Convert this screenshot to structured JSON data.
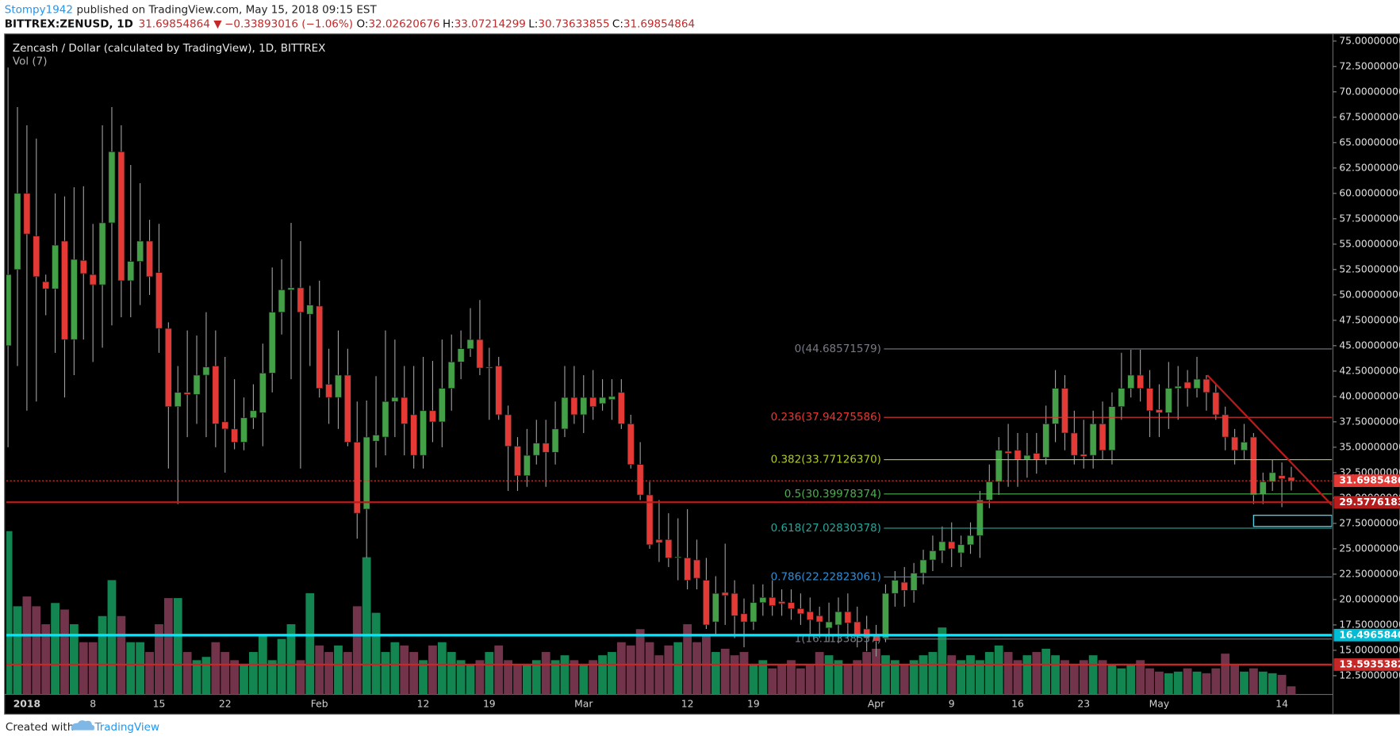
{
  "header": {
    "author": "Stompy1942",
    "published": "published on TradingView.com, May 15, 2018 09:15 EST",
    "symbol": "BITTREX:ZENUSD, 1D",
    "last": "31.69854864",
    "arrow": "▼",
    "change": "−0.33893016 (−1.06%)",
    "ohlc": [
      {
        "key": "O:",
        "value": "32.02620676"
      },
      {
        "key": "H:",
        "value": "33.07214299"
      },
      {
        "key": "L:",
        "value": "30.73633855"
      },
      {
        "key": "C:",
        "value": "31.69854864"
      }
    ]
  },
  "footer": {
    "created": "Created with",
    "brand": "TradingView"
  },
  "chart_data": {
    "type": "candlestick",
    "title": "Zencash / Dollar (calculated by TradingView), 1D, BITTREX",
    "volume_label": "Vol (7)",
    "up_color": "#43a047",
    "down_color": "#e53935",
    "wick_color": "#9e9e9e",
    "volume_up_color": "#15935a",
    "volume_down_color": "#7d3a52",
    "categories": [
      null,
      null,
      "2018",
      null,
      null,
      null,
      null,
      null,
      null,
      "8",
      null,
      null,
      null,
      null,
      null,
      null,
      "15",
      null,
      null,
      null,
      null,
      null,
      null,
      "22",
      null,
      null,
      null,
      null,
      null,
      null,
      null,
      null,
      null,
      "Feb",
      null,
      null,
      null,
      null,
      null,
      null,
      null,
      null,
      null,
      null,
      "12",
      null,
      null,
      null,
      null,
      null,
      null,
      "19",
      null,
      null,
      null,
      null,
      null,
      null,
      null,
      null,
      null,
      "Mar",
      null,
      null,
      null,
      null,
      null,
      null,
      null,
      null,
      null,
      null,
      "12",
      null,
      null,
      null,
      null,
      null,
      null,
      "19",
      null,
      null,
      null,
      null,
      null,
      null,
      null,
      null,
      null,
      null,
      null,
      null,
      "Apr",
      null,
      null,
      null,
      null,
      null,
      null,
      null,
      "9",
      null,
      null,
      null,
      null,
      null,
      null,
      "16",
      null,
      null,
      null,
      null,
      null,
      null,
      "23",
      null,
      null,
      null,
      null,
      null,
      null,
      null,
      "May",
      null,
      null,
      null,
      null,
      null,
      null,
      null,
      null,
      null,
      null,
      null,
      null,
      "14",
      null
    ],
    "open": [
      45,
      52.5,
      60,
      55.8,
      51.3,
      50.6,
      55.3,
      45.6,
      53.4,
      52,
      51,
      57.1,
      64.1,
      51.4,
      53.3,
      55.3,
      52.2,
      46.7,
      39,
      40.4,
      40.2,
      42.1,
      43,
      37.5,
      36.8,
      35.5,
      37.9,
      38.4,
      42.3,
      48.3,
      50.5,
      50.7,
      48.1,
      48.9,
      41.2,
      39.9,
      42.1,
      35.5,
      28.9,
      35.6,
      36,
      39.5,
      39.9,
      38.2,
      34.2,
      38.6,
      37.5,
      40.8,
      43.4,
      44.7,
      45.6,
      42.8,
      43,
      38.2,
      35.1,
      32.2,
      34.2,
      35.4,
      34.5,
      36.8,
      39.9,
      38.2,
      39.9,
      39.3,
      39.7,
      40.4,
      37.3,
      33.3,
      30.3,
      25.9,
      25.9,
      24.1,
      24.1,
      23.9,
      21.9,
      17.8,
      20.7,
      20.6,
      18.6,
      17.8,
      19.7,
      20.2,
      19.8,
      19.7,
      19.1,
      18.8,
      18.4,
      17.2,
      17.5,
      18.8,
      17.8,
      17.1,
      16.5,
      16.2,
      20.6,
      21.7,
      20.9,
      22.6,
      23.9,
      24.8,
      25.7,
      24.6,
      25.4,
      26.3,
      29.8,
      31.6,
      34.6,
      34.7,
      33.8,
      34.4,
      34,
      37.3,
      40.8,
      36.4,
      34.3,
      34.2,
      37.3,
      34.7,
      39,
      40.8,
      42.1,
      40.8,
      38.7,
      38.4,
      40.8,
      41.4,
      40.8,
      41.7,
      40.4,
      38.2,
      36,
      34.7,
      36,
      30.4,
      31.6,
      32.2,
      32.03
    ],
    "high": [
      72.4,
      68.5,
      66.7,
      65.4,
      52,
      60,
      59.7,
      60.6,
      60.7,
      57,
      66.7,
      68.5,
      66.7,
      62.8,
      61,
      57.4,
      57,
      47.3,
      43,
      46.5,
      46,
      48.3,
      46.5,
      43.9,
      41.7,
      39.9,
      41.2,
      45.2,
      52.7,
      53.5,
      57.1,
      55.3,
      50.9,
      51.4,
      44.7,
      46.5,
      44.7,
      39.5,
      39.6,
      42,
      46.5,
      45.6,
      43,
      43,
      43.9,
      43.5,
      45.6,
      46.1,
      46.5,
      48.7,
      49.5,
      44.8,
      43.9,
      39.1,
      36,
      36.8,
      37.7,
      37.7,
      39.5,
      43,
      43,
      42.1,
      42.6,
      41.7,
      41.7,
      41.7,
      38.2,
      35.5,
      31.6,
      29.8,
      28.5,
      28,
      28.9,
      25.9,
      24.1,
      22.3,
      25.5,
      21.9,
      20.1,
      21.5,
      21.5,
      21.9,
      21,
      21,
      20.6,
      20.2,
      19.3,
      19.7,
      20.2,
      20.6,
      19.3,
      18.4,
      17.5,
      21.5,
      22.8,
      23.2,
      23.6,
      24.9,
      26.3,
      27.2,
      27.6,
      26.3,
      27.6,
      30.7,
      33.3,
      36,
      37.3,
      36.4,
      36.4,
      36.4,
      39.1,
      42.6,
      42.1,
      38.6,
      37.7,
      38.6,
      39.5,
      40.4,
      44.3,
      44.6,
      44.6,
      42.6,
      41.2,
      43.4,
      43,
      42.6,
      43.9,
      42.1,
      41.2,
      39,
      36.8,
      37.3,
      36.4,
      32.5,
      33.8,
      33.5,
      33.07
    ],
    "low": [
      35,
      43,
      38.6,
      39.5,
      48,
      44.3,
      39.9,
      42.1,
      45.6,
      43.4,
      44.8,
      47,
      47.8,
      47.8,
      49,
      50,
      44.3,
      32.9,
      29.4,
      36,
      37.3,
      36,
      35,
      32.5,
      34.8,
      34.7,
      36.8,
      35.1,
      40.4,
      46.1,
      41.7,
      32.9,
      43,
      39.9,
      37.3,
      36.8,
      35.1,
      26,
      24.1,
      33,
      34.2,
      36,
      34.2,
      32.9,
      32.9,
      35.5,
      35,
      38.6,
      41.7,
      43.9,
      42.1,
      37.7,
      37.7,
      30.7,
      30.7,
      31.1,
      33.3,
      31.1,
      33.3,
      36,
      37.3,
      36.4,
      37.7,
      38.6,
      37.7,
      36.8,
      32.9,
      29.8,
      25,
      23.7,
      23.2,
      21.9,
      21,
      21,
      17.1,
      16.6,
      17.5,
      16.2,
      15.3,
      17,
      18.4,
      18.4,
      18.4,
      18,
      17.5,
      16.6,
      16.2,
      15.8,
      15.7,
      16.2,
      15.3,
      14.9,
      14.4,
      15.8,
      19.3,
      19.3,
      19.7,
      21.5,
      22.8,
      23.6,
      23.2,
      23.2,
      24.5,
      24.1,
      29,
      30.3,
      31.1,
      31.1,
      32,
      32.4,
      33.3,
      35.5,
      34.7,
      33.3,
      32.9,
      32.9,
      33.8,
      33.3,
      37.7,
      39.9,
      39.5,
      36,
      36,
      36.8,
      37.7,
      39,
      39.9,
      38.6,
      37.7,
      34.7,
      33.3,
      33.8,
      29.4,
      29.4,
      30.7,
      29.1,
      30.74
    ],
    "close": [
      52,
      60,
      56,
      51.8,
      50.6,
      54.9,
      45.6,
      53.5,
      52.1,
      51,
      57.1,
      64.1,
      51.4,
      53.3,
      55.3,
      51.8,
      46.7,
      39,
      40.4,
      40.2,
      42.1,
      42.9,
      37.3,
      36.8,
      35.5,
      37.9,
      38.6,
      42.3,
      48.3,
      50.5,
      50.7,
      48.3,
      49,
      40.8,
      39.9,
      42.1,
      35.5,
      28.5,
      36,
      36.2,
      39.5,
      39.9,
      37.3,
      34.2,
      38.6,
      37.5,
      40.8,
      43.4,
      44.7,
      45.6,
      42.8,
      42.9,
      38.2,
      35.1,
      32.2,
      34.2,
      35.4,
      34.5,
      36.8,
      39.9,
      38.2,
      39.9,
      39,
      39.9,
      40,
      37.3,
      33.3,
      30.3,
      25.4,
      25.6,
      24.1,
      24.2,
      21.9,
      22.1,
      17.5,
      20.6,
      20.4,
      18.4,
      17.8,
      19.7,
      20.2,
      19.4,
      19.6,
      19.1,
      18.6,
      18,
      17.8,
      17.8,
      18.8,
      17.7,
      16.6,
      16.2,
      15.9,
      20.6,
      21.9,
      20.9,
      22.6,
      23.9,
      24.8,
      25.7,
      25,
      25.4,
      26.3,
      29.8,
      31.6,
      34.7,
      34.4,
      33.8,
      34.2,
      33.8,
      37.3,
      40.8,
      36.4,
      34.2,
      34.1,
      37.3,
      34.7,
      39,
      40.8,
      42.1,
      40.8,
      38.6,
      38.4,
      40.8,
      41,
      40.8,
      41.7,
      40.4,
      38.2,
      36,
      34.7,
      35.5,
      30.3,
      31.6,
      32.5,
      31.9,
      31.7
    ],
    "volume": [
      100,
      54,
      60,
      54,
      43,
      56,
      52,
      43,
      32,
      32,
      48,
      70,
      48,
      32,
      32,
      26,
      43,
      59,
      59,
      26,
      21,
      23,
      32,
      26,
      21,
      18,
      26,
      37,
      21,
      34,
      43,
      21,
      62,
      30,
      26,
      30,
      26,
      54,
      84,
      50,
      26,
      32,
      30,
      26,
      21,
      30,
      32,
      26,
      21,
      18,
      21,
      26,
      30,
      21,
      18,
      18,
      21,
      26,
      21,
      24,
      21,
      18,
      21,
      24,
      26,
      32,
      30,
      40,
      32,
      24,
      30,
      32,
      43,
      32,
      37,
      26,
      28,
      24,
      26,
      18,
      21,
      16,
      18,
      21,
      16,
      18,
      26,
      24,
      21,
      18,
      21,
      26,
      28,
      24,
      21,
      18,
      21,
      24,
      26,
      41,
      24,
      21,
      24,
      21,
      26,
      30,
      26,
      21,
      24,
      26,
      28,
      24,
      21,
      18,
      21,
      24,
      21,
      18,
      16,
      18,
      21,
      16,
      14,
      13,
      14,
      16,
      14,
      13,
      16,
      25,
      18,
      14,
      16,
      14,
      13,
      12,
      5
    ],
    "ylim": [
      10.65,
      75.53
    ],
    "yticks": [
      {
        "value": 12.5,
        "label": "12.500000000"
      },
      {
        "value": 15,
        "label": "15.000000000"
      },
      {
        "value": 17.5,
        "label": "17.500000000"
      },
      {
        "value": 20,
        "label": "20.000000000"
      },
      {
        "value": 22.5,
        "label": "22.500000000"
      },
      {
        "value": 25,
        "label": "25.000000000"
      },
      {
        "value": 27.5,
        "label": "27.500000000"
      },
      {
        "value": 30,
        "label": "30.000000000"
      },
      {
        "value": 32.5,
        "label": "32.500000000"
      },
      {
        "value": 35,
        "label": "35.000000000"
      },
      {
        "value": 37.5,
        "label": "37.500000000"
      },
      {
        "value": 40,
        "label": "40.000000000"
      },
      {
        "value": 42.5,
        "label": "42.500000000"
      },
      {
        "value": 45,
        "label": "45.000000000"
      },
      {
        "value": 47.5,
        "label": "47.500000000"
      },
      {
        "value": 50,
        "label": "50.000000000"
      },
      {
        "value": 52.5,
        "label": "52.500000000"
      },
      {
        "value": 55,
        "label": "55.000000000"
      },
      {
        "value": 57.5,
        "label": "57.500000000"
      },
      {
        "value": 60,
        "label": "60.000000000"
      },
      {
        "value": 62.5,
        "label": "62.500000000"
      },
      {
        "value": 65,
        "label": "65.000000000"
      },
      {
        "value": 67.5,
        "label": "67.500000000"
      },
      {
        "value": 70,
        "label": "70.000000000"
      },
      {
        "value": 72.5,
        "label": "72.500000000"
      },
      {
        "value": 75,
        "label": "75.000000000"
      }
    ],
    "grid": false,
    "fib_levels": [
      {
        "label": "0(44.68571579)",
        "value": 44.68571579,
        "color": "#787b86"
      },
      {
        "label": "0.236(37.94275586)",
        "value": 37.94275586,
        "color": "#e53935"
      },
      {
        "label": "0.382(33.77126370)",
        "value": 33.7712637,
        "color": "#aeca2b"
      },
      {
        "label": "0.5(30.39978374)",
        "value": 30.39978374,
        "color": "#4caf50"
      },
      {
        "label": "0.618(27.02830378)",
        "value": 27.02830378,
        "color": "#26a69a"
      },
      {
        "label": "0.786(22.22823061)",
        "value": 22.22823061,
        "color": "#2f8fd6"
      },
      {
        "label": "1(16.11338537)",
        "value": 16.11338537,
        "color": "#787b86"
      }
    ],
    "hlines": [
      {
        "value": 29.57761832,
        "color": "#b71c1c",
        "width": 2
      },
      {
        "value": 16.49658407,
        "color": "#00e5ff",
        "width": 3
      },
      {
        "value": 13.59353827,
        "color": "#c62828",
        "width": 2
      }
    ],
    "price_line": {
      "value": 31.69854864,
      "color": "#e53935"
    },
    "trendline": {
      "x": [
        127.1,
        140.3
      ],
      "y": [
        42.1,
        29.3
      ],
      "color": "#b71c1c"
    },
    "zone": {
      "x": [
        132,
        140.3
      ],
      "y": [
        28.3,
        27.2
      ],
      "color": "#4dd0e1"
    }
  }
}
